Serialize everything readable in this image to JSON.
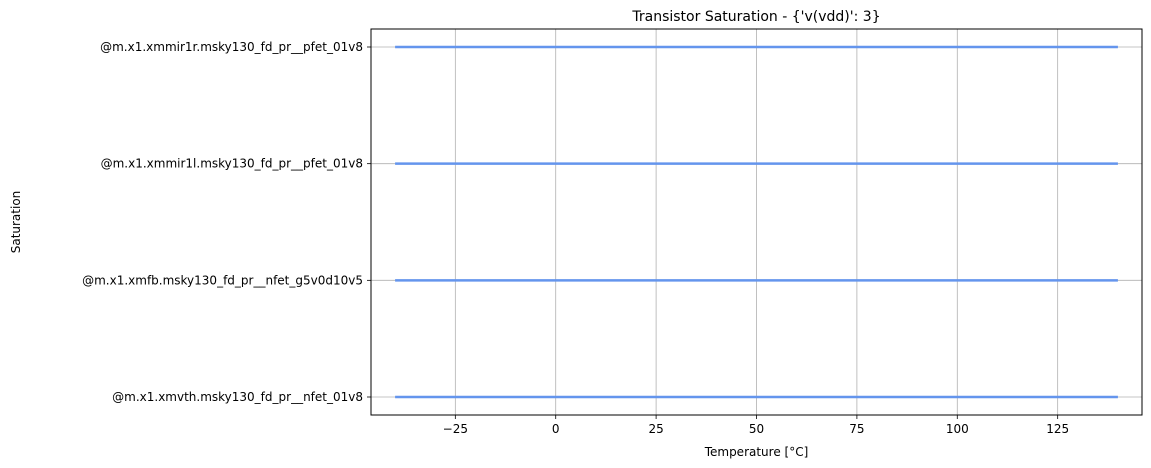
{
  "chart_data": {
    "type": "line",
    "title": "Transistor Saturation - {'v(vdd)': 3}",
    "xlabel": "Temperature [°C]",
    "ylabel": "Saturation",
    "xlim": [
      -46,
      146
    ],
    "xticks": [
      -25,
      0,
      25,
      50,
      75,
      100,
      125
    ],
    "xtick_labels": [
      "−25",
      "0",
      "25",
      "50",
      "75",
      "100",
      "125"
    ],
    "categories": [
      "@m.x1.xmvth.msky130_fd_pr__nfet_01v8",
      "@m.x1.xmfb.msky130_fd_pr__nfet_g5v0d10v5",
      "@m.x1.xmmir1l.msky130_fd_pr__pfet_01v8",
      "@m.x1.xmmir1r.msky130_fd_pr__pfet_01v8"
    ],
    "series": [
      {
        "category_index": 0,
        "x": [
          -40,
          140
        ],
        "color": "#6495ed"
      },
      {
        "category_index": 1,
        "x": [
          -40,
          140
        ],
        "color": "#6495ed"
      },
      {
        "category_index": 2,
        "x": [
          -40,
          140
        ],
        "color": "#6495ed"
      },
      {
        "category_index": 3,
        "x": [
          -40,
          140
        ],
        "color": "#6495ed"
      }
    ],
    "grid": true,
    "legend": "none"
  }
}
